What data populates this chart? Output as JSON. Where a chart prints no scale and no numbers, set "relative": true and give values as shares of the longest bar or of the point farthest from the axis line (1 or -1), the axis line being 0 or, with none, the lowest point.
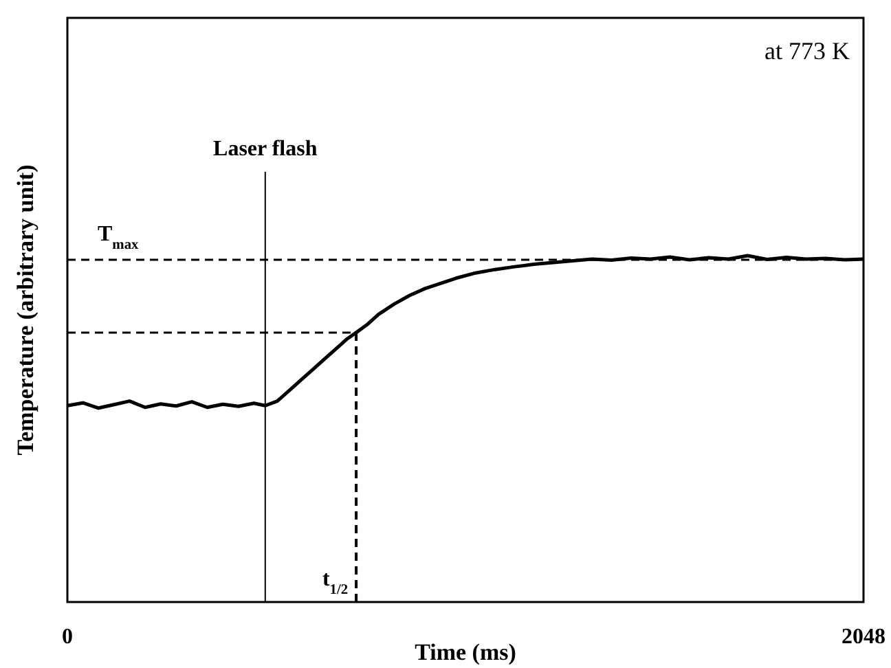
{
  "chart_data": {
    "type": "line",
    "relative": true,
    "xlabel": "Time (ms)",
    "ylabel": "Temperature (arbitrary unit)",
    "xlim": [
      0,
      2048
    ],
    "xticks": [
      0,
      2048
    ],
    "grid": false,
    "line_style": "solid",
    "series": [
      {
        "color": "#000000",
        "x": [
          0,
          40,
          80,
          120,
          160,
          200,
          240,
          280,
          320,
          360,
          400,
          440,
          480,
          509,
          540,
          570,
          600,
          630,
          660,
          690,
          720,
          743,
          770,
          800,
          840,
          880,
          920,
          960,
          1000,
          1050,
          1100,
          1150,
          1200,
          1250,
          1300,
          1350,
          1400,
          1450,
          1500,
          1550,
          1600,
          1650,
          1700,
          1750,
          1800,
          1850,
          1900,
          1950,
          2000,
          2048
        ],
        "values": [
          0.567,
          0.575,
          0.56,
          0.57,
          0.58,
          0.562,
          0.572,
          0.566,
          0.578,
          0.562,
          0.571,
          0.565,
          0.574,
          0.567,
          0.58,
          0.61,
          0.64,
          0.67,
          0.7,
          0.73,
          0.76,
          0.778,
          0.8,
          0.83,
          0.86,
          0.885,
          0.905,
          0.92,
          0.935,
          0.95,
          0.96,
          0.968,
          0.975,
          0.98,
          0.985,
          0.99,
          0.987,
          0.993,
          0.99,
          0.996,
          0.988,
          0.994,
          0.99,
          1.0,
          0.989,
          0.995,
          0.99,
          0.992,
          0.988,
          0.99
        ]
      }
    ],
    "ref_lines": [
      {
        "axis": "x",
        "value": 509,
        "label": "Laser flash",
        "line_style": "solid"
      },
      {
        "axis": "x",
        "value": 743,
        "label": "t$_{1/2}$",
        "line_style": "dashed"
      },
      {
        "axis": "y",
        "value": 0.988,
        "label": "T$_{max}$",
        "line_style": "dashed"
      },
      {
        "axis": "y",
        "value": 0.778,
        "line_style": "dashed"
      }
    ],
    "annotations": [
      "at 773 K"
    ]
  }
}
